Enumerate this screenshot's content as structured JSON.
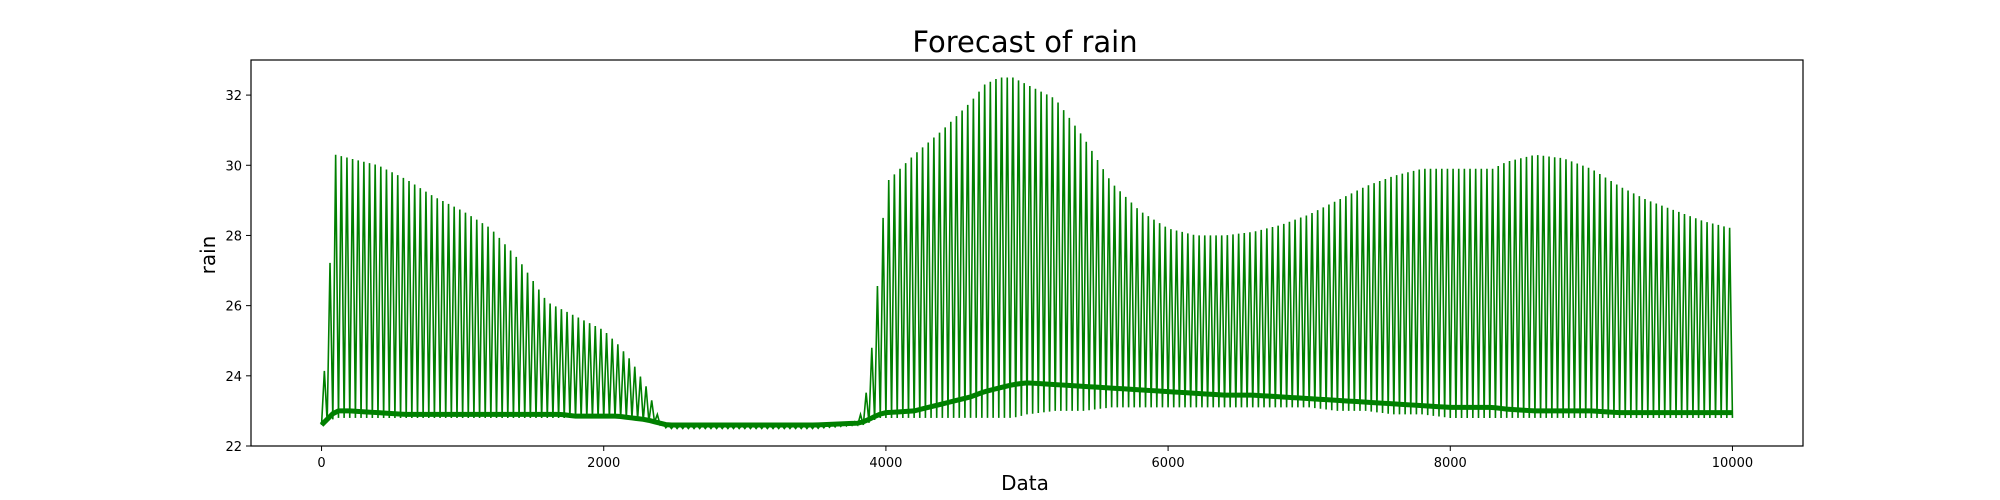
{
  "chart_data": {
    "type": "line",
    "title": "Forecast of rain",
    "xlabel": "Data",
    "ylabel": "rain",
    "xlim": [
      -500,
      10500
    ],
    "ylim": [
      22,
      33
    ],
    "xticks": [
      0,
      2000,
      4000,
      6000,
      8000,
      10000
    ],
    "yticks": [
      22,
      24,
      26,
      28,
      30,
      32
    ],
    "grid": false,
    "legend": "none",
    "color": "#008000",
    "series": [
      {
        "x": [
          0,
          100,
          200,
          400,
          600,
          800,
          1000,
          1200,
          1400,
          1600,
          1700,
          1800,
          2000,
          2100,
          2200,
          2300,
          2350,
          2400,
          2450,
          2500,
          3000,
          3500,
          3800,
          3850,
          3900,
          3950,
          4000,
          4200,
          4400,
          4600,
          4700,
          4800,
          4900,
          5000,
          5200,
          5400,
          5600,
          5800,
          6000,
          6200,
          6400,
          6600,
          6800,
          7000,
          7200,
          7400,
          7600,
          7800,
          8000,
          8200,
          8300,
          8400,
          8600,
          8800,
          9000,
          9200,
          9400,
          9600,
          9800,
          10000
        ],
        "upper": [
          22.6,
          30.3,
          30.2,
          30.0,
          29.6,
          29.1,
          28.7,
          28.2,
          27.3,
          26.1,
          25.9,
          25.7,
          25.3,
          24.9,
          24.4,
          23.7,
          23.2,
          22.7,
          22.6,
          22.6,
          22.6,
          22.6,
          22.7,
          23.2,
          24.8,
          27.0,
          29.5,
          30.3,
          31.0,
          31.8,
          32.3,
          32.5,
          32.5,
          32.3,
          31.9,
          30.8,
          29.5,
          28.7,
          28.2,
          28.0,
          28.0,
          28.1,
          28.3,
          28.6,
          29.0,
          29.4,
          29.7,
          29.9,
          29.9,
          29.9,
          29.9,
          30.1,
          30.3,
          30.2,
          29.9,
          29.4,
          29.0,
          28.7,
          28.4,
          28.2
        ],
        "lower": [
          22.6,
          22.8,
          22.8,
          22.8,
          22.8,
          22.8,
          22.8,
          22.8,
          22.8,
          22.8,
          22.8,
          22.8,
          22.8,
          22.8,
          22.8,
          22.7,
          22.7,
          22.6,
          22.5,
          22.5,
          22.5,
          22.5,
          22.6,
          22.6,
          22.7,
          22.8,
          22.8,
          22.8,
          22.8,
          22.8,
          22.8,
          22.8,
          22.8,
          22.9,
          23.0,
          23.0,
          23.1,
          23.1,
          23.1,
          23.1,
          23.1,
          23.1,
          23.1,
          23.1,
          23.0,
          23.0,
          22.9,
          22.9,
          22.8,
          22.8,
          22.8,
          22.8,
          22.8,
          22.8,
          22.8,
          22.8,
          22.8,
          22.8,
          22.8,
          22.8
        ],
        "mid": [
          22.6,
          23.0,
          23.0,
          22.95,
          22.9,
          22.9,
          22.9,
          22.9,
          22.9,
          22.9,
          22.9,
          22.85,
          22.85,
          22.85,
          22.8,
          22.75,
          22.7,
          22.65,
          22.6,
          22.6,
          22.6,
          22.6,
          22.65,
          22.7,
          22.8,
          22.9,
          22.95,
          23.0,
          23.2,
          23.4,
          23.55,
          23.65,
          23.75,
          23.8,
          23.75,
          23.7,
          23.65,
          23.6,
          23.55,
          23.5,
          23.45,
          23.45,
          23.4,
          23.35,
          23.3,
          23.25,
          23.2,
          23.15,
          23.1,
          23.1,
          23.1,
          23.05,
          23.0,
          23.0,
          23.0,
          22.95,
          22.95,
          22.95,
          22.95,
          22.95
        ]
      }
    ]
  }
}
